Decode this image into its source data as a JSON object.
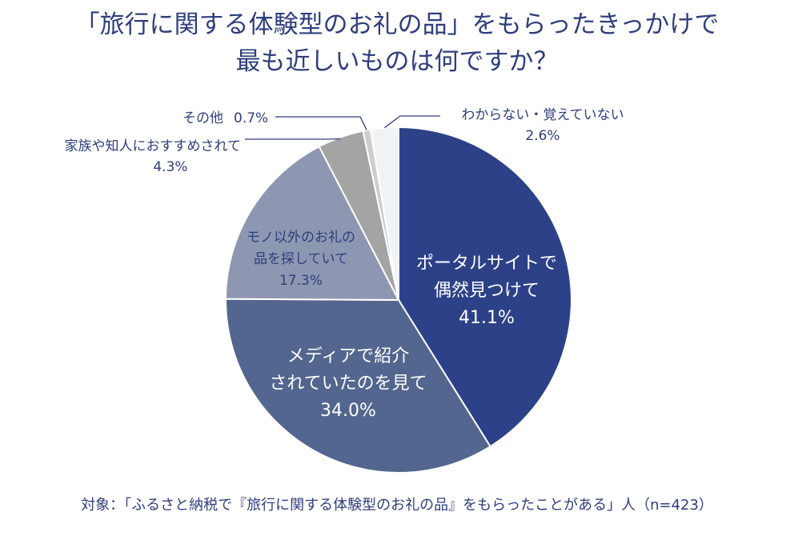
{
  "title": {
    "line1": "「旅行に関する体験型のお礼の品」をもらったきっかけで",
    "line2": "最も近しいものは何ですか？"
  },
  "footnote": "対象：「ふるさと納税で『旅行に関する体験型のお礼の品』をもらったことがある」人（n=423）",
  "colors": {
    "text": "#2f3e7c",
    "leader": "#2f3e7c",
    "slice_border": "#ffffff"
  },
  "chart_data": {
    "type": "pie",
    "start": "12 o'clock",
    "direction": "clockwise",
    "slices": [
      {
        "label_lines": [
          "ポータルサイトで",
          "偶然見つけて"
        ],
        "value_label": "41.1%",
        "value": 41.1,
        "color": "#2d4189",
        "label_position": "inside",
        "label_color": "#ffffff"
      },
      {
        "label_lines": [
          "メディアで紹介",
          "されていたのを見て"
        ],
        "value_label": "34.0%",
        "value": 34.0,
        "color": "#53668f",
        "label_position": "inside",
        "label_color": "#ffffff"
      },
      {
        "label_lines": [
          "モノ以外のお礼の",
          "品を探していて"
        ],
        "value_label": "17.3%",
        "value": 17.3,
        "color": "#8e97b2",
        "label_position": "inside",
        "label_color": "#2f3e7c"
      },
      {
        "label_lines": [
          "家族や知人におすすめされて"
        ],
        "value_label": "4.3%",
        "value": 4.3,
        "color": "#a4a4a4",
        "label_position": "outside-left",
        "label_color": "#2f3e7c"
      },
      {
        "label_lines": [
          "その他"
        ],
        "value_label": "0.7%",
        "value": 0.7,
        "color": "#cdcdcd",
        "label_position": "outside-left-inline",
        "label_color": "#2f3e7c"
      },
      {
        "label_lines": [
          "わからない・覚えていない"
        ],
        "value_label": "2.6%",
        "value": 2.6,
        "color": "#f1f2f4",
        "label_position": "outside-right",
        "label_color": "#2f3e7c"
      }
    ]
  }
}
